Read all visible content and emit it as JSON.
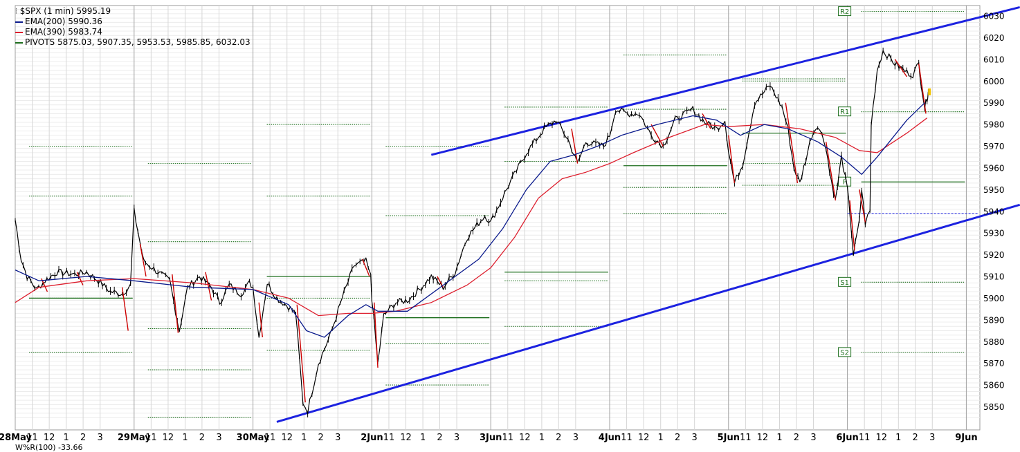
{
  "legend": {
    "title_icon": "candlestick-icon",
    "title": "$SPX (1 min) 5995.19",
    "ema200": "EMA(200) 5990.36",
    "ema390": "EMA(390) 5983.74",
    "pivots": "PIVOTS 5875.03, 5907.35, 5953.53, 5985.85, 6032.03"
  },
  "bottom_strip": "W%R(100) -33.66",
  "colors": {
    "price": "#000000",
    "down": "#cc0000",
    "ema200": "#0a1a8c",
    "ema390": "#dd1f2e",
    "pivot": "#1c6e1c",
    "trendline": "#1c22e0",
    "grid": "#c8c8c8",
    "current_price": "#f2c400"
  },
  "chart_data": {
    "type": "line",
    "title": "$SPX (1 min) 5995.19",
    "ylim": [
      5843,
      6034
    ],
    "y_ticks": [
      5850,
      5860,
      5870,
      5880,
      5890,
      5900,
      5910,
      5920,
      5930,
      5940,
      5950,
      5960,
      5970,
      5980,
      5990,
      6000,
      6010,
      6020,
      6030
    ],
    "x_ticks": [
      {
        "d": 0,
        "label": "28May"
      },
      {
        "d": 0.143,
        "label": "11"
      },
      {
        "d": 0.286,
        "label": "12"
      },
      {
        "d": 0.429,
        "label": "1"
      },
      {
        "d": 0.571,
        "label": "2"
      },
      {
        "d": 0.714,
        "label": "3"
      },
      {
        "d": 1,
        "label": "29May"
      },
      {
        "d": 1.143,
        "label": "11"
      },
      {
        "d": 1.286,
        "label": "12"
      },
      {
        "d": 1.429,
        "label": "1"
      },
      {
        "d": 1.571,
        "label": "2"
      },
      {
        "d": 1.714,
        "label": "3"
      },
      {
        "d": 2,
        "label": "30May"
      },
      {
        "d": 2.143,
        "label": "11"
      },
      {
        "d": 2.286,
        "label": "12"
      },
      {
        "d": 2.429,
        "label": "1"
      },
      {
        "d": 2.571,
        "label": "2"
      },
      {
        "d": 2.714,
        "label": "3"
      },
      {
        "d": 3,
        "label": "2Jun"
      },
      {
        "d": 3.143,
        "label": "11"
      },
      {
        "d": 3.286,
        "label": "12"
      },
      {
        "d": 3.429,
        "label": "1"
      },
      {
        "d": 3.571,
        "label": "2"
      },
      {
        "d": 3.714,
        "label": "3"
      },
      {
        "d": 4,
        "label": "3Jun"
      },
      {
        "d": 4.143,
        "label": "11"
      },
      {
        "d": 4.286,
        "label": "12"
      },
      {
        "d": 4.429,
        "label": "1"
      },
      {
        "d": 4.571,
        "label": "2"
      },
      {
        "d": 4.714,
        "label": "3"
      },
      {
        "d": 5,
        "label": "4Jun"
      },
      {
        "d": 5.143,
        "label": "11"
      },
      {
        "d": 5.286,
        "label": "12"
      },
      {
        "d": 5.429,
        "label": "1"
      },
      {
        "d": 5.571,
        "label": "2"
      },
      {
        "d": 5.714,
        "label": "3"
      },
      {
        "d": 6,
        "label": "5Jun"
      },
      {
        "d": 6.143,
        "label": "11"
      },
      {
        "d": 6.286,
        "label": "12"
      },
      {
        "d": 6.429,
        "label": "1"
      },
      {
        "d": 6.571,
        "label": "2"
      },
      {
        "d": 6.714,
        "label": "3"
      },
      {
        "d": 7,
        "label": "6Jun"
      },
      {
        "d": 7.143,
        "label": "11"
      },
      {
        "d": 7.286,
        "label": "12"
      },
      {
        "d": 7.429,
        "label": "1"
      },
      {
        "d": 7.571,
        "label": "2"
      },
      {
        "d": 7.714,
        "label": "3"
      },
      {
        "d": 8,
        "label": "9Jun"
      }
    ],
    "price": [
      [
        0,
        5936
      ],
      [
        0.05,
        5918
      ],
      [
        0.1,
        5910
      ],
      [
        0.18,
        5904
      ],
      [
        0.25,
        5908
      ],
      [
        0.35,
        5912
      ],
      [
        0.5,
        5911
      ],
      [
        0.6,
        5912
      ],
      [
        0.7,
        5908
      ],
      [
        0.8,
        5903
      ],
      [
        0.9,
        5902
      ],
      [
        0.97,
        5906
      ],
      [
        1,
        5940
      ],
      [
        1.08,
        5917
      ],
      [
        1.2,
        5912
      ],
      [
        1.3,
        5908
      ],
      [
        1.38,
        5885
      ],
      [
        1.45,
        5905
      ],
      [
        1.55,
        5910
      ],
      [
        1.65,
        5905
      ],
      [
        1.72,
        5898
      ],
      [
        1.8,
        5906
      ],
      [
        1.9,
        5902
      ],
      [
        1.97,
        5907
      ],
      [
        2,
        5905
      ],
      [
        2.05,
        5882
      ],
      [
        2.12,
        5907
      ],
      [
        2.2,
        5900
      ],
      [
        2.3,
        5896
      ],
      [
        2.36,
        5893
      ],
      [
        2.42,
        5852
      ],
      [
        2.46,
        5848
      ],
      [
        2.55,
        5870
      ],
      [
        2.65,
        5883
      ],
      [
        2.75,
        5900
      ],
      [
        2.85,
        5915
      ],
      [
        2.95,
        5917
      ],
      [
        2.99,
        5910
      ],
      [
        3,
        5900
      ],
      [
        3.05,
        5870
      ],
      [
        3.1,
        5892
      ],
      [
        3.2,
        5898
      ],
      [
        3.3,
        5899
      ],
      [
        3.4,
        5904
      ],
      [
        3.5,
        5910
      ],
      [
        3.6,
        5905
      ],
      [
        3.7,
        5912
      ],
      [
        3.8,
        5928
      ],
      [
        3.95,
        5938
      ],
      [
        4,
        5935
      ],
      [
        4.15,
        5952
      ],
      [
        4.3,
        5967
      ],
      [
        4.45,
        5978
      ],
      [
        4.55,
        5982
      ],
      [
        4.65,
        5973
      ],
      [
        4.73,
        5962
      ],
      [
        4.8,
        5972
      ],
      [
        4.95,
        5970
      ],
      [
        5,
        5975
      ],
      [
        5.05,
        5987
      ],
      [
        5.15,
        5985
      ],
      [
        5.25,
        5985
      ],
      [
        5.35,
        5975
      ],
      [
        5.45,
        5970
      ],
      [
        5.55,
        5982
      ],
      [
        5.7,
        5987
      ],
      [
        5.8,
        5981
      ],
      [
        5.9,
        5978
      ],
      [
        5.97,
        5982
      ],
      [
        6,
        5968
      ],
      [
        6.05,
        5953
      ],
      [
        6.12,
        5962
      ],
      [
        6.22,
        5990
      ],
      [
        6.35,
        5998
      ],
      [
        6.45,
        5988
      ],
      [
        6.5,
        5978
      ],
      [
        6.55,
        5960
      ],
      [
        6.6,
        5953
      ],
      [
        6.7,
        5975
      ],
      [
        6.75,
        5980
      ],
      [
        6.82,
        5970
      ],
      [
        6.85,
        5958
      ],
      [
        6.9,
        5945
      ],
      [
        6.95,
        5965
      ],
      [
        7.0,
        5950
      ],
      [
        7.02,
        5940
      ],
      [
        7.05,
        5920
      ],
      [
        7.1,
        5935
      ],
      [
        7.12,
        5950
      ],
      [
        7.15,
        5935
      ],
      [
        7.19,
        5940
      ],
      [
        7.2,
        5980
      ],
      [
        7.25,
        6005
      ],
      [
        7.3,
        6014
      ],
      [
        7.4,
        6008
      ],
      [
        7.5,
        6004
      ],
      [
        7.55,
        6003
      ],
      [
        7.6,
        6008
      ],
      [
        7.62,
        5999
      ],
      [
        7.65,
        5988
      ],
      [
        7.67,
        5992
      ],
      [
        7.68,
        5995
      ]
    ],
    "down_segments": [
      [
        [
          0.22,
          5909
        ],
        [
          0.27,
          5903
        ]
      ],
      [
        [
          0.52,
          5912
        ],
        [
          0.57,
          5906
        ]
      ],
      [
        [
          0.9,
          5905
        ],
        [
          0.95,
          5885
        ]
      ],
      [
        [
          1.05,
          5925
        ],
        [
          1.1,
          5910
        ]
      ],
      [
        [
          1.32,
          5911
        ],
        [
          1.37,
          5884
        ]
      ],
      [
        [
          1.6,
          5912
        ],
        [
          1.65,
          5899
        ]
      ],
      [
        [
          2.05,
          5898
        ],
        [
          2.08,
          5882
        ]
      ],
      [
        [
          2.37,
          5897
        ],
        [
          2.44,
          5852
        ]
      ],
      [
        [
          2.92,
          5918
        ],
        [
          2.98,
          5910
        ]
      ],
      [
        [
          3.02,
          5898
        ],
        [
          3.05,
          5868
        ]
      ],
      [
        [
          3.55,
          5910
        ],
        [
          3.6,
          5905
        ]
      ],
      [
        [
          4.68,
          5978
        ],
        [
          4.73,
          5962
        ]
      ],
      [
        [
          5.35,
          5980
        ],
        [
          5.45,
          5970
        ]
      ],
      [
        [
          5.78,
          5985
        ],
        [
          5.85,
          5978
        ]
      ],
      [
        [
          6.0,
          5975
        ],
        [
          6.05,
          5953
        ]
      ],
      [
        [
          6.48,
          5990
        ],
        [
          6.58,
          5953
        ]
      ],
      [
        [
          6.82,
          5972
        ],
        [
          6.9,
          5945
        ]
      ],
      [
        [
          7.02,
          5945
        ],
        [
          7.06,
          5922
        ]
      ],
      [
        [
          7.1,
          5950
        ],
        [
          7.15,
          5935
        ]
      ],
      [
        [
          7.4,
          6010
        ],
        [
          7.5,
          6002
        ]
      ],
      [
        [
          7.6,
          6008
        ],
        [
          7.66,
          5985
        ]
      ]
    ],
    "ema200": [
      [
        0,
        5913
      ],
      [
        0.2,
        5908
      ],
      [
        0.6,
        5910
      ],
      [
        1,
        5908
      ],
      [
        1.5,
        5905
      ],
      [
        2,
        5904
      ],
      [
        2.3,
        5897
      ],
      [
        2.45,
        5885
      ],
      [
        2.6,
        5882
      ],
      [
        2.8,
        5892
      ],
      [
        2.95,
        5897
      ],
      [
        3.05,
        5894
      ],
      [
        3.3,
        5894
      ],
      [
        3.6,
        5906
      ],
      [
        3.9,
        5918
      ],
      [
        4.1,
        5932
      ],
      [
        4.3,
        5950
      ],
      [
        4.5,
        5963
      ],
      [
        4.7,
        5966
      ],
      [
        4.9,
        5970
      ],
      [
        5.1,
        5975
      ],
      [
        5.4,
        5980
      ],
      [
        5.7,
        5984
      ],
      [
        5.9,
        5982
      ],
      [
        6.1,
        5975
      ],
      [
        6.3,
        5980
      ],
      [
        6.5,
        5978
      ],
      [
        6.75,
        5972
      ],
      [
        6.95,
        5965
      ],
      [
        7.12,
        5957
      ],
      [
        7.25,
        5965
      ],
      [
        7.5,
        5982
      ],
      [
        7.65,
        5990
      ]
    ],
    "ema390": [
      [
        0,
        5898
      ],
      [
        0.2,
        5905
      ],
      [
        0.6,
        5908
      ],
      [
        1,
        5909
      ],
      [
        1.5,
        5907
      ],
      [
        2,
        5904
      ],
      [
        2.3,
        5900
      ],
      [
        2.55,
        5892
      ],
      [
        2.8,
        5893
      ],
      [
        3.0,
        5893
      ],
      [
        3.2,
        5894
      ],
      [
        3.5,
        5898
      ],
      [
        3.8,
        5906
      ],
      [
        4.0,
        5914
      ],
      [
        4.2,
        5928
      ],
      [
        4.4,
        5946
      ],
      [
        4.6,
        5955
      ],
      [
        4.8,
        5958
      ],
      [
        5.0,
        5962
      ],
      [
        5.2,
        5967
      ],
      [
        5.5,
        5974
      ],
      [
        5.8,
        5980
      ],
      [
        6.0,
        5979
      ],
      [
        6.3,
        5980
      ],
      [
        6.6,
        5978
      ],
      [
        6.9,
        5974
      ],
      [
        7.1,
        5968
      ],
      [
        7.25,
        5967
      ],
      [
        7.5,
        5976
      ],
      [
        7.67,
        5983
      ]
    ],
    "pivot_days": [
      {
        "d": 0,
        "s2": 5875,
        "s1": 5900,
        "p": 5900,
        "r1": 5947,
        "r2": 5970,
        "solid": "p"
      },
      {
        "d": 1,
        "s2": 5845,
        "s1": 5867,
        "p": 5886,
        "r1": 5926,
        "r2": 5962,
        "solid": "none"
      },
      {
        "d": 2,
        "s2": 5876,
        "s1": 5900,
        "p": 5910,
        "r1": 5947,
        "r2": 5980,
        "solid": "p"
      },
      {
        "d": 3,
        "s2": 5860,
        "s1": 5879,
        "p": 5891,
        "r1": 5938,
        "r2": 5970,
        "solid": "p"
      },
      {
        "d": 4,
        "s2": 5887,
        "s1": 5908,
        "p": 5912,
        "r1": 5963,
        "r2": 5988,
        "solid": "p"
      },
      {
        "d": 5,
        "s2": 5939,
        "s1": 5951,
        "p": 5961,
        "r1": 5987,
        "r2": 6012,
        "solid": "p"
      },
      {
        "d": 6,
        "s2": 5952,
        "s1": 5962,
        "p": 5976,
        "r1": 6000,
        "r2": 6001,
        "solid": "p"
      },
      {
        "d": 7,
        "s2": 5875.03,
        "s1": 5907.35,
        "p": 5953.53,
        "r1": 5985.85,
        "r2": 6032.03,
        "solid": "p"
      }
    ],
    "pivot_labels": {
      "r2": "R2",
      "r1": "R1",
      "p": "P",
      "s1": "S1",
      "s2": "S2"
    },
    "trendlines": [
      {
        "from": [
          3.5,
          5966
        ],
        "to": [
          8.45,
          6034
        ]
      },
      {
        "from": [
          2.2,
          5843
        ],
        "to": [
          8.45,
          5943
        ]
      }
    ],
    "current_price_line": {
      "from": 7.0,
      "to": 8.1,
      "value": 5939
    },
    "current_price_marker": {
      "d": 7.69,
      "value": 5995
    }
  }
}
